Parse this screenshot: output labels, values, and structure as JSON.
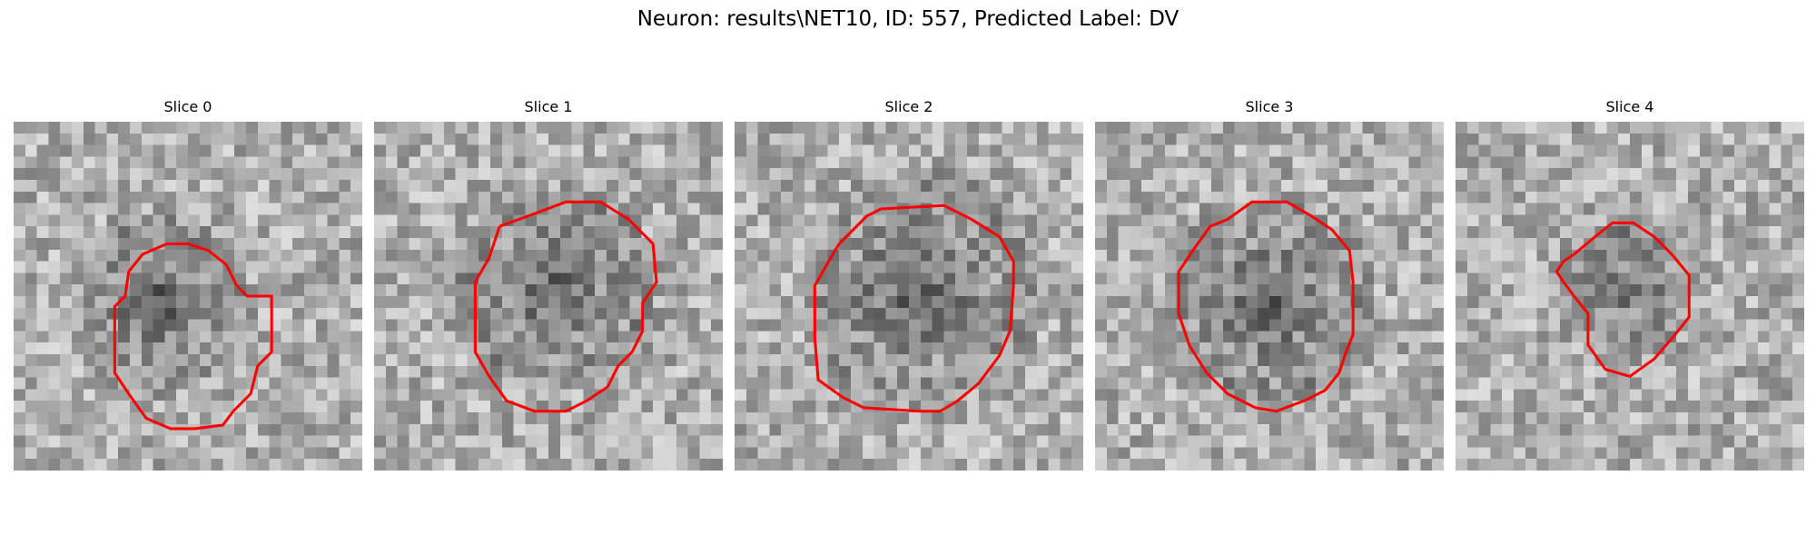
{
  "figure": {
    "title": "Neuron: results\\NET10, ID: 557, Predicted Label: DV"
  },
  "colors": {
    "contour": "#ff0000",
    "background": "#ffffff"
  },
  "slices": [
    {
      "title": "Slice 0",
      "seed": 11,
      "blob": [
        0.42,
        0.52,
        0.22,
        0.85
      ],
      "contour": [
        [
          0.33,
          0.43
        ],
        [
          0.37,
          0.38
        ],
        [
          0.44,
          0.35
        ],
        [
          0.5,
          0.35
        ],
        [
          0.56,
          0.37
        ],
        [
          0.61,
          0.41
        ],
        [
          0.64,
          0.47
        ],
        [
          0.67,
          0.5
        ],
        [
          0.74,
          0.5
        ],
        [
          0.74,
          0.66
        ],
        [
          0.7,
          0.7
        ],
        [
          0.68,
          0.78
        ],
        [
          0.63,
          0.83
        ],
        [
          0.6,
          0.87
        ],
        [
          0.52,
          0.88
        ],
        [
          0.45,
          0.88
        ],
        [
          0.38,
          0.85
        ],
        [
          0.33,
          0.78
        ],
        [
          0.29,
          0.72
        ],
        [
          0.29,
          0.53
        ],
        [
          0.32,
          0.5
        ],
        [
          0.33,
          0.43
        ]
      ]
    },
    {
      "title": "Slice 1",
      "seed": 23,
      "blob": [
        0.52,
        0.48,
        0.26,
        0.8
      ],
      "contour": [
        [
          0.36,
          0.3
        ],
        [
          0.47,
          0.26
        ],
        [
          0.55,
          0.23
        ],
        [
          0.65,
          0.23
        ],
        [
          0.73,
          0.28
        ],
        [
          0.8,
          0.35
        ],
        [
          0.81,
          0.46
        ],
        [
          0.77,
          0.52
        ],
        [
          0.77,
          0.6
        ],
        [
          0.74,
          0.66
        ],
        [
          0.7,
          0.7
        ],
        [
          0.67,
          0.76
        ],
        [
          0.61,
          0.8
        ],
        [
          0.55,
          0.83
        ],
        [
          0.46,
          0.83
        ],
        [
          0.38,
          0.8
        ],
        [
          0.33,
          0.73
        ],
        [
          0.29,
          0.66
        ],
        [
          0.29,
          0.46
        ],
        [
          0.33,
          0.39
        ],
        [
          0.35,
          0.33
        ],
        [
          0.36,
          0.3
        ]
      ]
    },
    {
      "title": "Slice 2",
      "seed": 37,
      "blob": [
        0.53,
        0.48,
        0.3,
        0.85
      ],
      "contour": [
        [
          0.3,
          0.35
        ],
        [
          0.38,
          0.27
        ],
        [
          0.42,
          0.25
        ],
        [
          0.6,
          0.24
        ],
        [
          0.68,
          0.28
        ],
        [
          0.76,
          0.33
        ],
        [
          0.8,
          0.4
        ],
        [
          0.8,
          0.47
        ],
        [
          0.79,
          0.6
        ],
        [
          0.76,
          0.67
        ],
        [
          0.7,
          0.75
        ],
        [
          0.64,
          0.8
        ],
        [
          0.59,
          0.83
        ],
        [
          0.53,
          0.83
        ],
        [
          0.37,
          0.82
        ],
        [
          0.31,
          0.79
        ],
        [
          0.24,
          0.74
        ],
        [
          0.23,
          0.62
        ],
        [
          0.23,
          0.47
        ],
        [
          0.27,
          0.4
        ],
        [
          0.3,
          0.35
        ]
      ]
    },
    {
      "title": "Slice 3",
      "seed": 53,
      "blob": [
        0.5,
        0.52,
        0.26,
        0.8
      ],
      "contour": [
        [
          0.33,
          0.3
        ],
        [
          0.38,
          0.28
        ],
        [
          0.45,
          0.23
        ],
        [
          0.55,
          0.23
        ],
        [
          0.62,
          0.27
        ],
        [
          0.68,
          0.31
        ],
        [
          0.73,
          0.37
        ],
        [
          0.74,
          0.46
        ],
        [
          0.74,
          0.61
        ],
        [
          0.72,
          0.66
        ],
        [
          0.7,
          0.72
        ],
        [
          0.66,
          0.77
        ],
        [
          0.6,
          0.8
        ],
        [
          0.52,
          0.83
        ],
        [
          0.46,
          0.82
        ],
        [
          0.38,
          0.78
        ],
        [
          0.32,
          0.72
        ],
        [
          0.27,
          0.64
        ],
        [
          0.24,
          0.55
        ],
        [
          0.24,
          0.43
        ],
        [
          0.28,
          0.37
        ],
        [
          0.33,
          0.3
        ]
      ]
    },
    {
      "title": "Slice 4",
      "seed": 71,
      "blob": [
        0.5,
        0.47,
        0.16,
        0.7
      ],
      "contour": [
        [
          0.34,
          0.38
        ],
        [
          0.4,
          0.33
        ],
        [
          0.45,
          0.29
        ],
        [
          0.51,
          0.29
        ],
        [
          0.57,
          0.33
        ],
        [
          0.62,
          0.38
        ],
        [
          0.67,
          0.44
        ],
        [
          0.67,
          0.56
        ],
        [
          0.63,
          0.61
        ],
        [
          0.57,
          0.68
        ],
        [
          0.5,
          0.73
        ],
        [
          0.43,
          0.71
        ],
        [
          0.38,
          0.64
        ],
        [
          0.38,
          0.55
        ],
        [
          0.34,
          0.5
        ],
        [
          0.31,
          0.46
        ],
        [
          0.29,
          0.43
        ],
        [
          0.31,
          0.4
        ],
        [
          0.34,
          0.38
        ]
      ]
    }
  ]
}
